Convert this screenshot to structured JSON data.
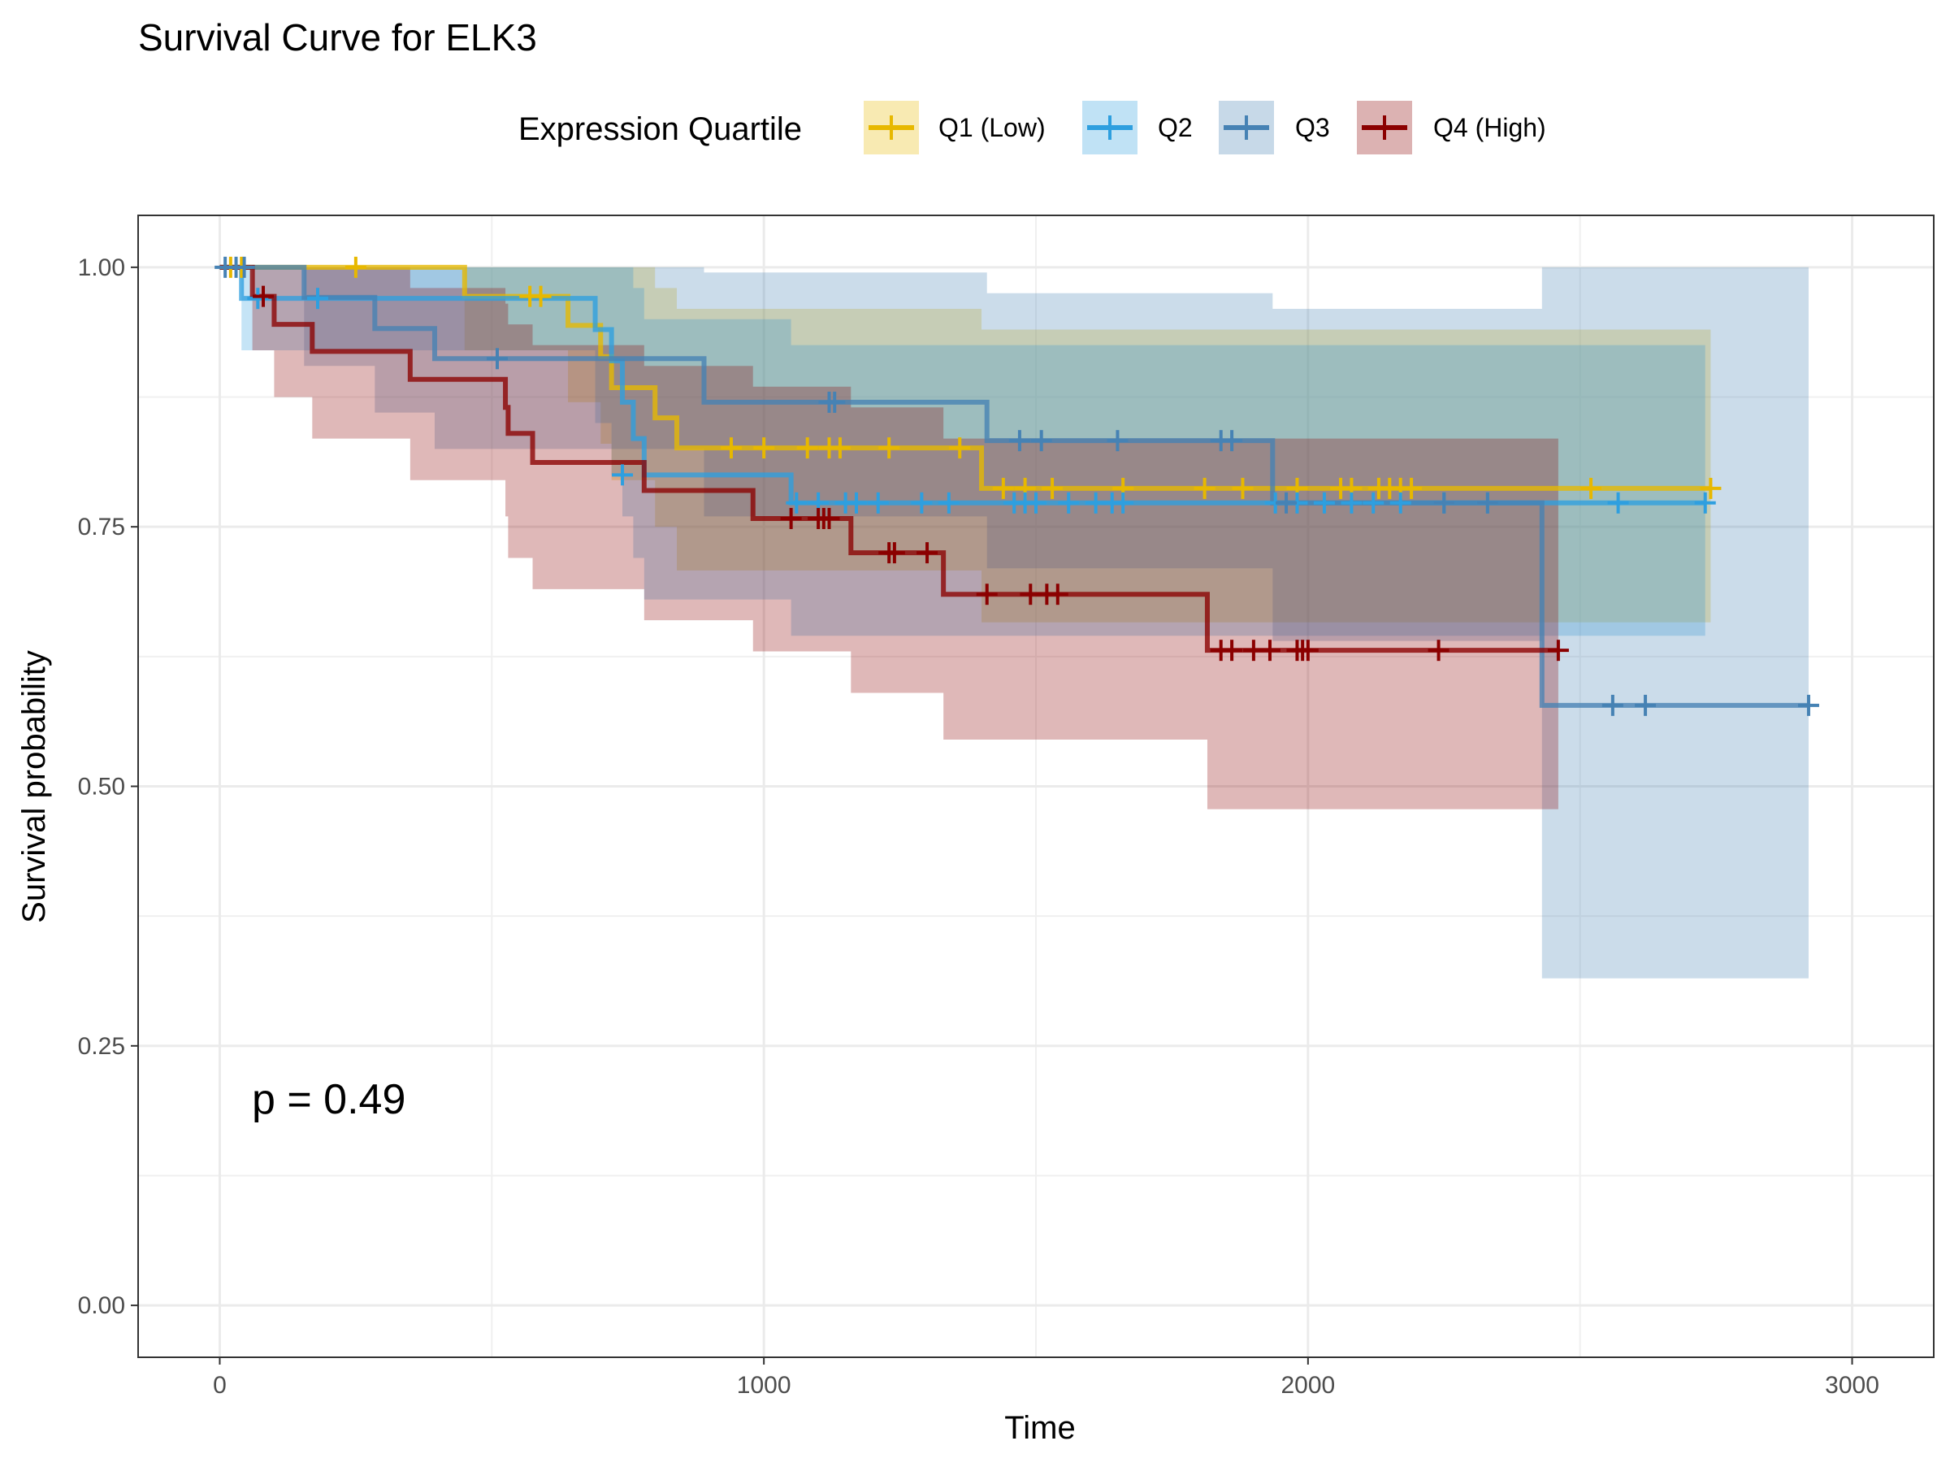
{
  "chart_data": {
    "type": "line",
    "title": "Survival Curve for ELK3",
    "xlabel": "Time",
    "ylabel": "Survival probability",
    "xlim": [
      -150,
      3150
    ],
    "ylim": [
      -0.05,
      1.05
    ],
    "xticks": [
      0,
      1000,
      2000,
      3000
    ],
    "xtick_labels": [
      "0",
      "1000",
      "2000",
      "3000"
    ],
    "yticks": [
      0,
      0.25,
      0.5,
      0.75,
      1.0
    ],
    "ytick_labels": [
      "0.00",
      "0.25",
      "0.50",
      "0.75",
      "1.00"
    ],
    "grid": true,
    "legend": {
      "title": "Expression Quartile",
      "position": "top"
    },
    "annotation": "p = 0.49",
    "series": [
      {
        "name": "Q1 (Low)",
        "color": "#E7B800",
        "steps": [
          [
            0,
            1.0
          ],
          [
            450,
            0.972
          ],
          [
            640,
            0.944
          ],
          [
            700,
            0.914
          ],
          [
            720,
            0.884
          ],
          [
            800,
            0.855
          ],
          [
            840,
            0.826
          ],
          [
            1400,
            0.787
          ],
          [
            2740,
            0.787
          ]
        ],
        "lower": [
          [
            0,
            1.0
          ],
          [
            450,
            0.92
          ],
          [
            640,
            0.87
          ],
          [
            700,
            0.83
          ],
          [
            720,
            0.795
          ],
          [
            800,
            0.75
          ],
          [
            840,
            0.708
          ],
          [
            1400,
            0.658
          ],
          [
            2740,
            0.658
          ]
        ],
        "upper": [
          [
            0,
            1.0
          ],
          [
            450,
            1.0
          ],
          [
            640,
            1.0
          ],
          [
            700,
            1.0
          ],
          [
            720,
            1.0
          ],
          [
            800,
            0.98
          ],
          [
            840,
            0.96
          ],
          [
            1400,
            0.94
          ],
          [
            2740,
            0.94
          ]
        ],
        "censor": [
          [
            20,
            1.0
          ],
          [
            40,
            1.0
          ],
          [
            250,
            1.0
          ],
          [
            570,
            0.972
          ],
          [
            590,
            0.972
          ],
          [
            940,
            0.826
          ],
          [
            1000,
            0.826
          ],
          [
            1080,
            0.826
          ],
          [
            1120,
            0.826
          ],
          [
            1140,
            0.826
          ],
          [
            1230,
            0.826
          ],
          [
            1360,
            0.826
          ],
          [
            1440,
            0.787
          ],
          [
            1480,
            0.787
          ],
          [
            1530,
            0.787
          ],
          [
            1660,
            0.787
          ],
          [
            1810,
            0.787
          ],
          [
            1880,
            0.787
          ],
          [
            1980,
            0.787
          ],
          [
            2060,
            0.787
          ],
          [
            2080,
            0.787
          ],
          [
            2130,
            0.787
          ],
          [
            2150,
            0.787
          ],
          [
            2170,
            0.787
          ],
          [
            2190,
            0.787
          ],
          [
            2520,
            0.787
          ],
          [
            2740,
            0.787
          ]
        ]
      },
      {
        "name": "Q2",
        "color": "#2E9FDF",
        "steps": [
          [
            0,
            1.0
          ],
          [
            40,
            0.97
          ],
          [
            690,
            0.94
          ],
          [
            720,
            0.91
          ],
          [
            740,
            0.87
          ],
          [
            760,
            0.835
          ],
          [
            780,
            0.8
          ],
          [
            1050,
            0.773
          ],
          [
            2730,
            0.773
          ]
        ],
        "lower": [
          [
            0,
            1.0
          ],
          [
            40,
            0.92
          ],
          [
            690,
            0.85
          ],
          [
            720,
            0.8
          ],
          [
            740,
            0.76
          ],
          [
            760,
            0.72
          ],
          [
            780,
            0.68
          ],
          [
            1050,
            0.645
          ],
          [
            2730,
            0.645
          ]
        ],
        "upper": [
          [
            0,
            1.0
          ],
          [
            40,
            1.0
          ],
          [
            690,
            1.0
          ],
          [
            720,
            1.0
          ],
          [
            740,
            1.0
          ],
          [
            760,
            0.98
          ],
          [
            780,
            0.95
          ],
          [
            1050,
            0.925
          ],
          [
            2730,
            0.925
          ]
        ],
        "censor": [
          [
            70,
            0.97
          ],
          [
            180,
            0.97
          ],
          [
            740,
            0.8
          ],
          [
            1060,
            0.773
          ],
          [
            1100,
            0.773
          ],
          [
            1150,
            0.773
          ],
          [
            1170,
            0.773
          ],
          [
            1210,
            0.773
          ],
          [
            1290,
            0.773
          ],
          [
            1340,
            0.773
          ],
          [
            1460,
            0.773
          ],
          [
            1480,
            0.773
          ],
          [
            1500,
            0.773
          ],
          [
            1560,
            0.773
          ],
          [
            1610,
            0.773
          ],
          [
            1640,
            0.773
          ],
          [
            1660,
            0.773
          ],
          [
            1940,
            0.773
          ],
          [
            1980,
            0.773
          ],
          [
            2030,
            0.773
          ],
          [
            2080,
            0.773
          ],
          [
            2120,
            0.773
          ],
          [
            2170,
            0.773
          ],
          [
            2250,
            0.773
          ],
          [
            2330,
            0.773
          ],
          [
            2570,
            0.773
          ],
          [
            2730,
            0.773
          ]
        ]
      },
      {
        "name": "Q3",
        "color": "#4682B4",
        "steps": [
          [
            0,
            1.0
          ],
          [
            155,
            0.971
          ],
          [
            285,
            0.941
          ],
          [
            395,
            0.912
          ],
          [
            450,
            0.912
          ],
          [
            890,
            0.87
          ],
          [
            1410,
            0.833
          ],
          [
            1935,
            0.773
          ],
          [
            2430,
            0.578
          ],
          [
            2920,
            0.578
          ]
        ],
        "lower": [
          [
            0,
            1.0
          ],
          [
            155,
            0.905
          ],
          [
            285,
            0.86
          ],
          [
            395,
            0.825
          ],
          [
            890,
            0.76
          ],
          [
            1410,
            0.71
          ],
          [
            1935,
            0.64
          ],
          [
            2430,
            0.315
          ],
          [
            2920,
            0.315
          ]
        ],
        "upper": [
          [
            0,
            1.0
          ],
          [
            155,
            1.0
          ],
          [
            285,
            1.0
          ],
          [
            395,
            1.0
          ],
          [
            890,
            0.995
          ],
          [
            1410,
            0.975
          ],
          [
            1935,
            0.96
          ],
          [
            2430,
            1.0
          ],
          [
            2920,
            1.0
          ]
        ],
        "censor": [
          [
            10,
            1.0
          ],
          [
            30,
            1.0
          ],
          [
            45,
            1.0
          ],
          [
            510,
            0.912
          ],
          [
            1120,
            0.87
          ],
          [
            1130,
            0.87
          ],
          [
            1470,
            0.833
          ],
          [
            1510,
            0.833
          ],
          [
            1650,
            0.833
          ],
          [
            1840,
            0.833
          ],
          [
            1860,
            0.833
          ],
          [
            1960,
            0.773
          ],
          [
            2250,
            0.773
          ],
          [
            2330,
            0.773
          ],
          [
            2560,
            0.578
          ],
          [
            2620,
            0.578
          ],
          [
            2920,
            0.578
          ]
        ]
      },
      {
        "name": "Q4 (High)",
        "color": "#8B0000",
        "steps": [
          [
            0,
            1.0
          ],
          [
            60,
            0.972
          ],
          [
            100,
            0.945
          ],
          [
            170,
            0.919
          ],
          [
            350,
            0.892
          ],
          [
            525,
            0.865
          ],
          [
            530,
            0.84
          ],
          [
            575,
            0.812
          ],
          [
            780,
            0.785
          ],
          [
            980,
            0.758
          ],
          [
            1160,
            0.725
          ],
          [
            1330,
            0.685
          ],
          [
            1815,
            0.631
          ],
          [
            2460,
            0.631
          ]
        ],
        "lower": [
          [
            0,
            1.0
          ],
          [
            60,
            0.92
          ],
          [
            100,
            0.875
          ],
          [
            170,
            0.835
          ],
          [
            350,
            0.795
          ],
          [
            525,
            0.76
          ],
          [
            530,
            0.72
          ],
          [
            575,
            0.69
          ],
          [
            780,
            0.66
          ],
          [
            980,
            0.63
          ],
          [
            1160,
            0.59
          ],
          [
            1330,
            0.545
          ],
          [
            1815,
            0.478
          ],
          [
            2460,
            0.478
          ]
        ],
        "upper": [
          [
            0,
            1.0
          ],
          [
            60,
            1.0
          ],
          [
            100,
            1.0
          ],
          [
            170,
            1.0
          ],
          [
            350,
            0.98
          ],
          [
            525,
            0.965
          ],
          [
            530,
            0.945
          ],
          [
            575,
            0.925
          ],
          [
            780,
            0.905
          ],
          [
            980,
            0.885
          ],
          [
            1160,
            0.865
          ],
          [
            1330,
            0.835
          ],
          [
            1815,
            0.835
          ],
          [
            2460,
            0.835
          ]
        ],
        "censor": [
          [
            80,
            0.972
          ],
          [
            1050,
            0.758
          ],
          [
            1100,
            0.758
          ],
          [
            1110,
            0.758
          ],
          [
            1120,
            0.758
          ],
          [
            1230,
            0.725
          ],
          [
            1240,
            0.725
          ],
          [
            1300,
            0.725
          ],
          [
            1410,
            0.685
          ],
          [
            1490,
            0.685
          ],
          [
            1520,
            0.685
          ],
          [
            1540,
            0.685
          ],
          [
            1840,
            0.631
          ],
          [
            1860,
            0.631
          ],
          [
            1900,
            0.631
          ],
          [
            1930,
            0.631
          ],
          [
            1980,
            0.631
          ],
          [
            1990,
            0.631
          ],
          [
            2000,
            0.631
          ],
          [
            2240,
            0.631
          ],
          [
            2460,
            0.631
          ]
        ]
      }
    ]
  }
}
